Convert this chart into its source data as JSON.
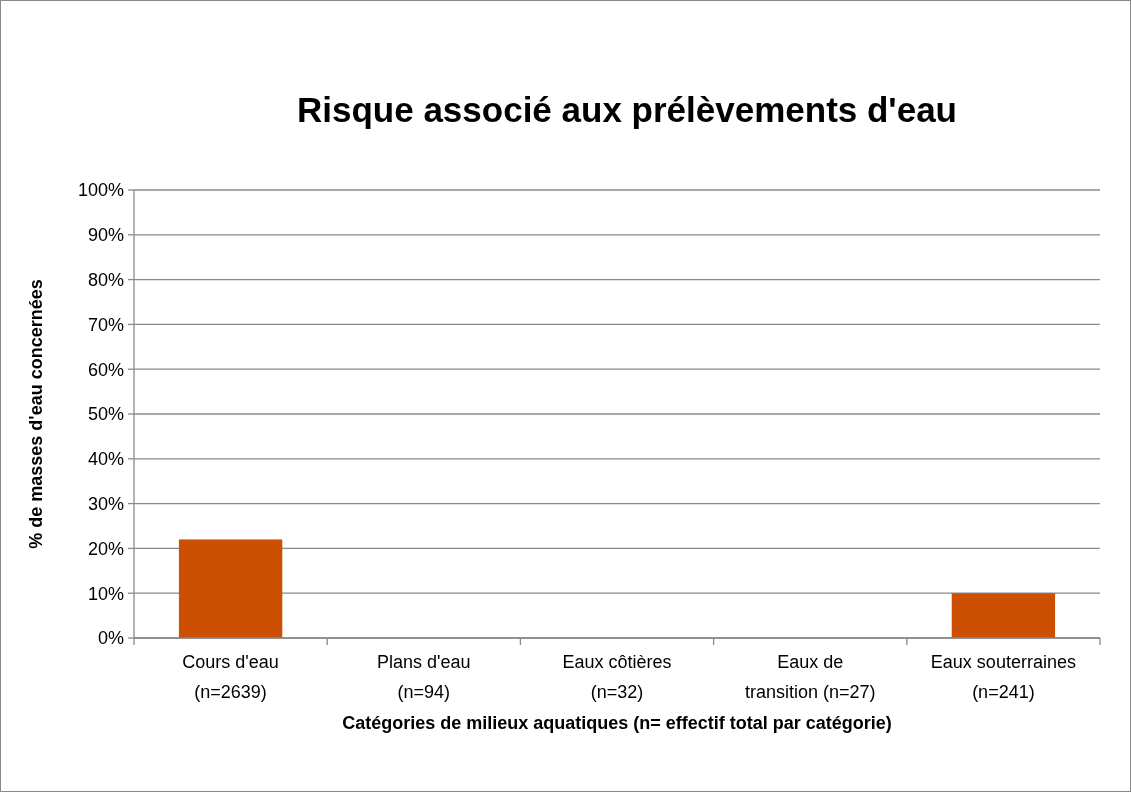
{
  "chart_data": {
    "type": "bar",
    "title": "Risque associé aux prélèvements d'eau",
    "xlabel": "Catégories de milieux aquatiques  (n= effectif total par catégorie)",
    "ylabel": "% de masses d'eau concernées",
    "categories": [
      "Cours d'eau\n(n=2639)",
      "Plans d'eau\n(n=94)",
      "Eaux côtières\n(n=32)",
      "Eaux de\ntransition (n=27)",
      "Eaux souterraines\n(n=241)"
    ],
    "values": [
      22,
      0,
      0,
      0,
      10
    ],
    "color": "#cb5003",
    "ylim": [
      0,
      100
    ],
    "yticks": [
      {
        "value": 0,
        "label": "0%"
      },
      {
        "value": 10,
        "label": "10%"
      },
      {
        "value": 20,
        "label": "20%"
      },
      {
        "value": 30,
        "label": "30%"
      },
      {
        "value": 40,
        "label": "40%"
      },
      {
        "value": 50,
        "label": "50%"
      },
      {
        "value": 60,
        "label": "60%"
      },
      {
        "value": 70,
        "label": "70%"
      },
      {
        "value": 80,
        "label": "80%"
      },
      {
        "value": 90,
        "label": "90%"
      },
      {
        "value": 100,
        "label": "100%"
      }
    ],
    "grid": "y"
  }
}
